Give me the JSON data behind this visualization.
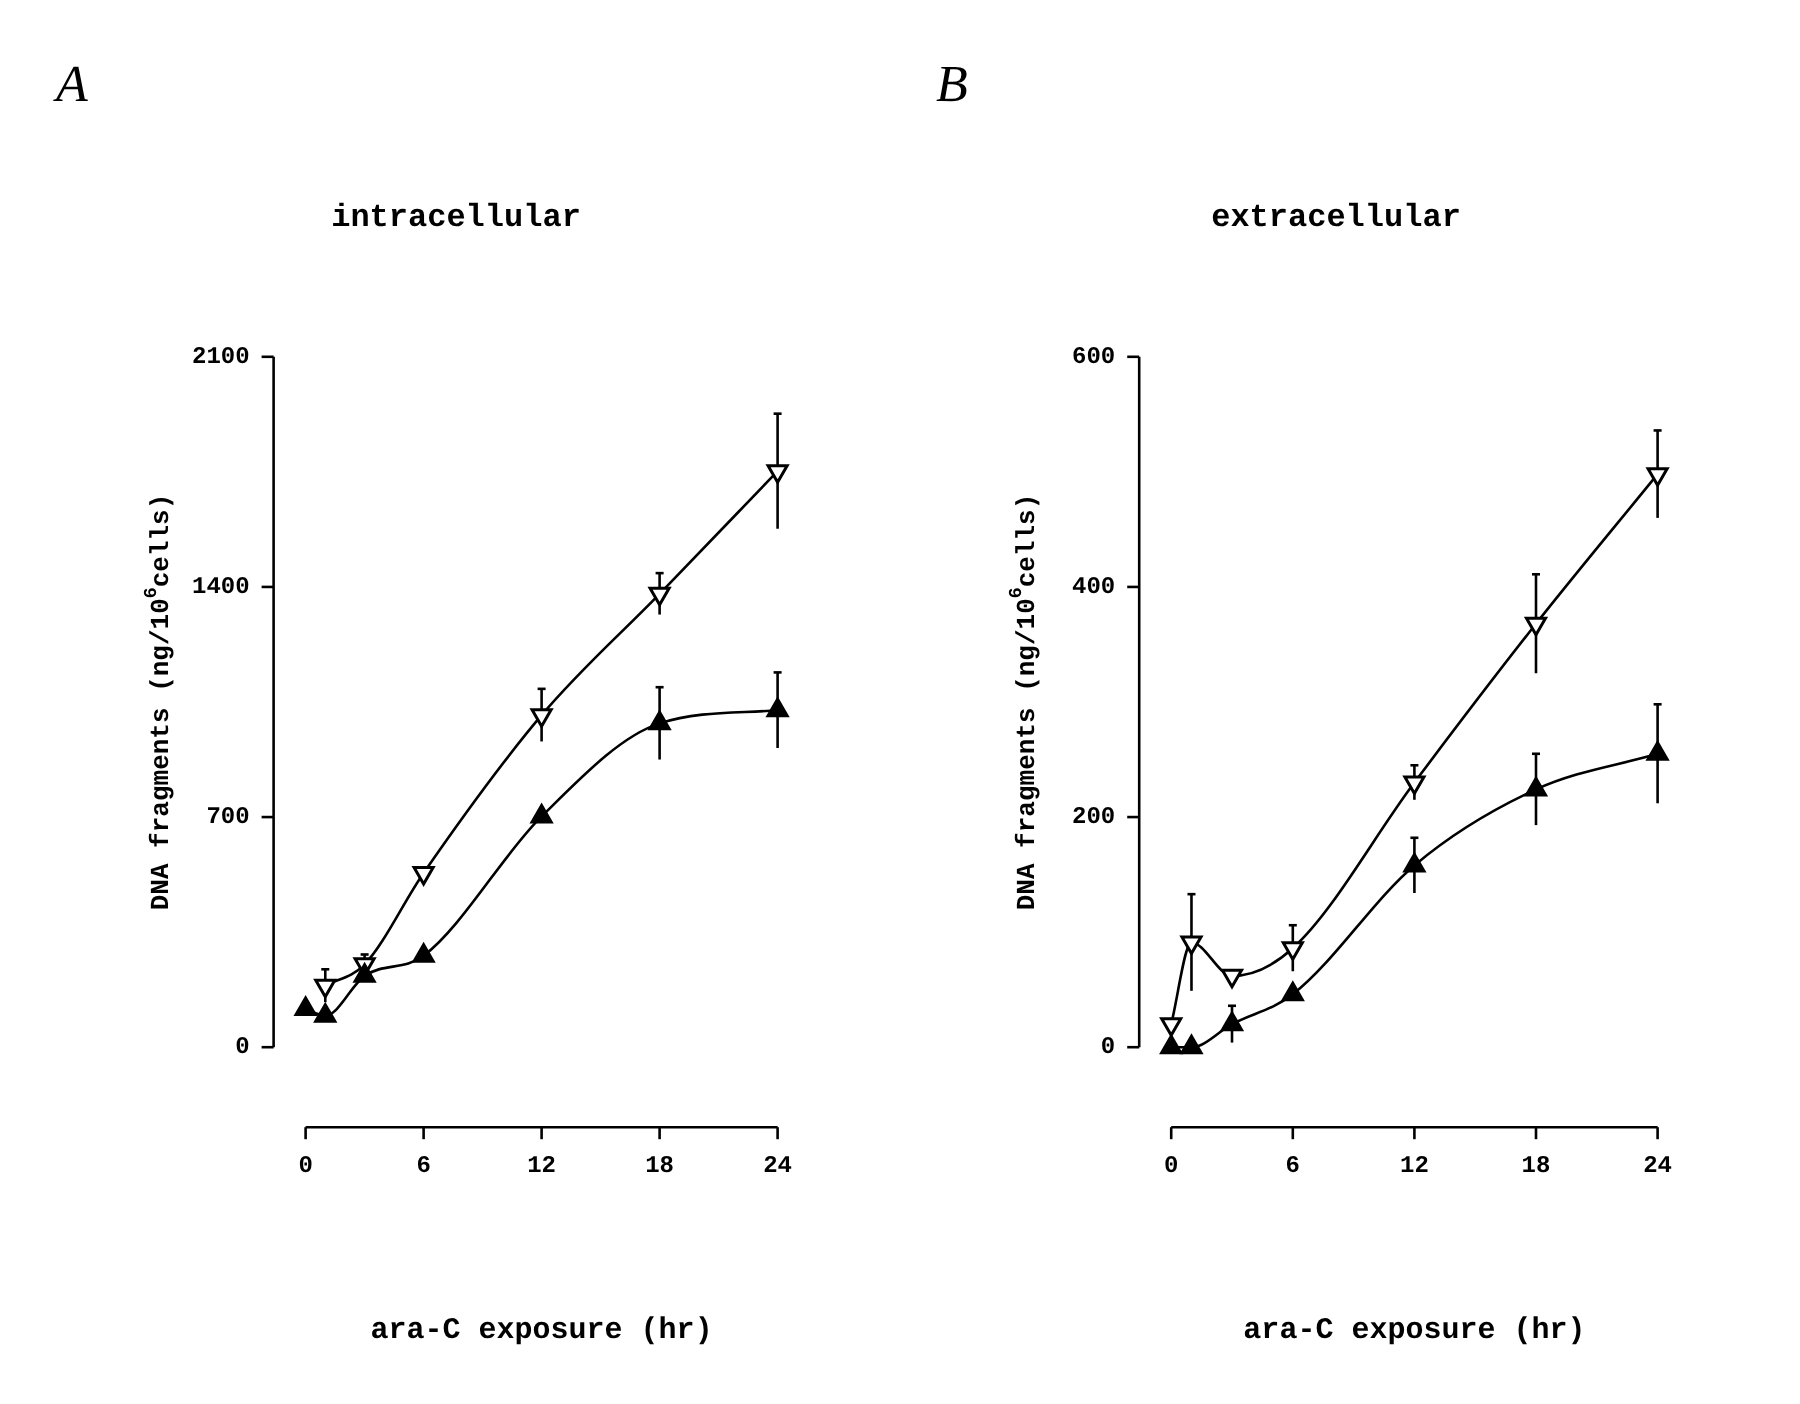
{
  "chart_data": [
    {
      "type": "line",
      "title": "A",
      "subtitle": "intracellular",
      "xlabel": "ara-C exposure (hr)",
      "ylabel": "DNA fragments (ng/10$^{6}$cells)",
      "x": [
        0,
        1,
        3,
        6,
        12,
        18,
        24
      ],
      "xlim": [
        0,
        24
      ],
      "xticks": [
        0,
        6,
        12,
        18,
        24
      ],
      "ylim": [
        0,
        2100
      ],
      "yticks": [
        0,
        700,
        1400,
        2100
      ],
      "grid": false,
      "legend": false,
      "marker": "triangle",
      "line_style": "solid",
      "series": [
        {
          "color": "#000000",
          "values": [
            null,
            187,
            252,
            530,
            1010,
            1379,
            1752
          ],
          "errors": [
            null,
            50,
            30,
            null,
            80,
            63,
            175
          ]
        },
        {
          "color": "#000000",
          "values": [
            116,
            96,
            217,
            278,
            702,
            985,
            1025
          ],
          "errors": [
            null,
            null,
            null,
            null,
            null,
            110,
            115
          ]
        }
      ]
    },
    {
      "type": "line",
      "title": "B",
      "subtitle": "extracellular",
      "xlabel": "ara-C exposure (hr)",
      "ylabel": "DNA fragments (ng/10$^{6}$cells)",
      "x": [
        0,
        1,
        3,
        6,
        12,
        18,
        24
      ],
      "xlim": [
        0,
        24
      ],
      "xticks": [
        0,
        6,
        12,
        18,
        24
      ],
      "ylim": [
        0,
        600
      ],
      "yticks": [
        0,
        200,
        400,
        600
      ],
      "grid": false,
      "legend": false,
      "marker": "triangle",
      "line_style": "solid",
      "series": [
        {
          "color": "#000000",
          "values": [
            20,
            91,
            62,
            86,
            230,
            368,
            498
          ],
          "errors": [
            null,
            42,
            null,
            20,
            15,
            43,
            38
          ]
        },
        {
          "color": "#000000",
          "values": [
            0,
            0,
            20,
            46,
            158,
            224,
            255
          ],
          "errors": [
            null,
            null,
            16,
            null,
            24,
            31,
            43
          ]
        }
      ]
    }
  ]
}
